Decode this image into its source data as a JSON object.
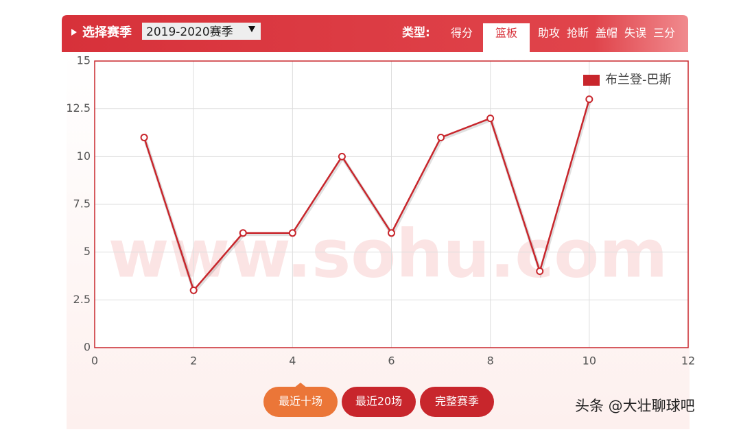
{
  "header": {
    "season_label": "选择赛季",
    "season": "2019-2020赛季",
    "type_label": "类型:",
    "tabs": [
      {
        "label": "得分",
        "active": false
      },
      {
        "label": "篮板",
        "active": true
      },
      {
        "label": "助攻",
        "active": false
      },
      {
        "label": "抢断",
        "active": false
      },
      {
        "label": "盖帽",
        "active": false
      },
      {
        "label": "失误",
        "active": false
      },
      {
        "label": "三分",
        "active": false
      }
    ]
  },
  "chart_data": {
    "type": "line",
    "watermark": "www.sohu.com",
    "x": [
      1,
      2,
      3,
      4,
      5,
      6,
      7,
      8,
      9,
      10
    ],
    "series": [
      {
        "name": "布兰登-巴斯",
        "color": "#c8262c",
        "values": [
          11,
          3,
          6,
          6,
          10,
          6,
          11,
          12,
          4,
          13
        ]
      }
    ],
    "xlim": [
      0,
      12
    ],
    "xticks": [
      0,
      2,
      4,
      6,
      8,
      10,
      12
    ],
    "ylim": [
      0,
      15
    ],
    "yticks": [
      0,
      2.5,
      5,
      7.5,
      10,
      12.5,
      15
    ],
    "grid": true,
    "legend": "top-right"
  },
  "buttons": [
    "最近十场",
    "最近20场",
    "完整赛季"
  ],
  "footer": "头条 @大壮聊球吧"
}
